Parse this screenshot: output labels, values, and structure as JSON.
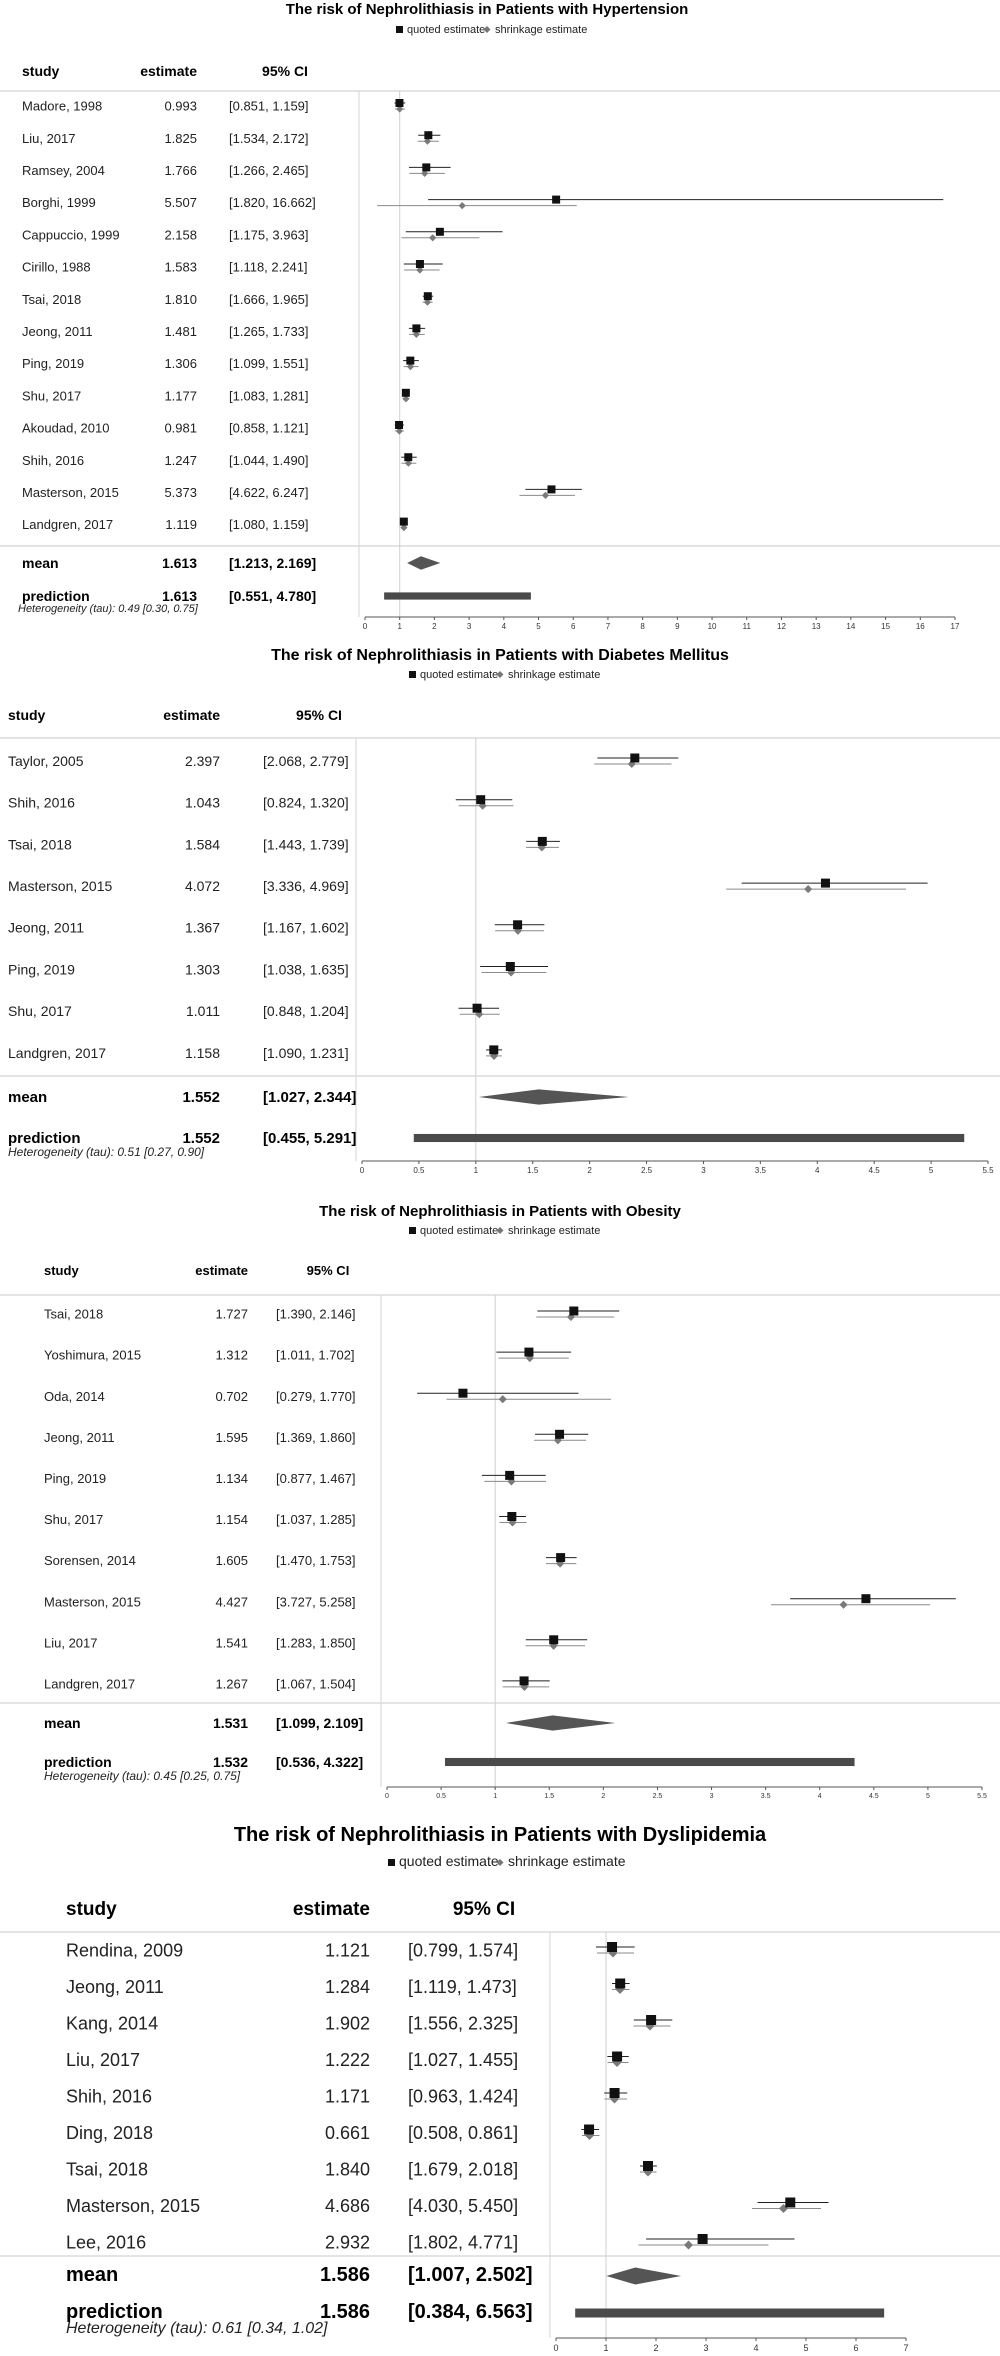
{
  "chart_data": [
    {
      "type": "forest",
      "title": "The risk of Nephrolithiasis in Patients with Hypertension",
      "legend": [
        "quoted estimate",
        "shrinkage estimate"
      ],
      "headers": [
        "study",
        "estimate",
        "95% CI"
      ],
      "rows": [
        {
          "study": "Madore, 1998",
          "estimate": "0.993",
          "ci": "[0.851, 1.159]",
          "est": 0.993,
          "lo": 0.851,
          "hi": 1.159,
          "shrink": 1.0,
          "slo": 0.86,
          "shi": 1.15
        },
        {
          "study": "Liu, 2017",
          "estimate": "1.825",
          "ci": "[1.534, 2.172]",
          "est": 1.825,
          "lo": 1.534,
          "hi": 2.172,
          "shrink": 1.8,
          "slo": 1.52,
          "shi": 2.13
        },
        {
          "study": "Ramsey, 2004",
          "estimate": "1.766",
          "ci": "[1.266, 2.465]",
          "est": 1.766,
          "lo": 1.266,
          "hi": 2.465,
          "shrink": 1.72,
          "slo": 1.28,
          "shi": 2.3
        },
        {
          "study": "Borghi, 1999",
          "estimate": "5.507",
          "ci": "[1.820, 16.662]",
          "est": 5.507,
          "lo": 1.82,
          "hi": 16.662,
          "shrink": 2.8,
          "slo": 0.35,
          "shi": 6.1
        },
        {
          "study": "Cappuccio, 1999",
          "estimate": "2.158",
          "ci": "[1.175, 3.963]",
          "est": 2.158,
          "lo": 1.175,
          "hi": 3.963,
          "shrink": 1.95,
          "slo": 1.05,
          "shi": 3.3
        },
        {
          "study": "Cirillo, 1988",
          "estimate": "1.583",
          "ci": "[1.118, 2.241]",
          "est": 1.583,
          "lo": 1.118,
          "hi": 2.241,
          "shrink": 1.58,
          "slo": 1.13,
          "shi": 2.15
        },
        {
          "study": "Tsai, 2018",
          "estimate": "1.810",
          "ci": "[1.666, 1.965]",
          "est": 1.81,
          "lo": 1.666,
          "hi": 1.965,
          "shrink": 1.8,
          "slo": 1.66,
          "shi": 1.95
        },
        {
          "study": "Jeong, 2011",
          "estimate": "1.481",
          "ci": "[1.265, 1.733]",
          "est": 1.481,
          "lo": 1.265,
          "hi": 1.733,
          "shrink": 1.48,
          "slo": 1.27,
          "shi": 1.72
        },
        {
          "study": "Ping, 2019",
          "estimate": "1.306",
          "ci": "[1.099, 1.551]",
          "est": 1.306,
          "lo": 1.099,
          "hi": 1.551,
          "shrink": 1.31,
          "slo": 1.11,
          "shi": 1.54
        },
        {
          "study": "Shu, 2017",
          "estimate": "1.177",
          "ci": "[1.083, 1.281]",
          "est": 1.177,
          "lo": 1.083,
          "hi": 1.281,
          "shrink": 1.18,
          "slo": 1.09,
          "shi": 1.28
        },
        {
          "study": "Akoudad, 2010",
          "estimate": "0.981",
          "ci": "[0.858, 1.121]",
          "est": 0.981,
          "lo": 0.858,
          "hi": 1.121,
          "shrink": 0.99,
          "slo": 0.87,
          "shi": 1.12
        },
        {
          "study": "Shih, 2016",
          "estimate": "1.247",
          "ci": "[1.044, 1.490]",
          "est": 1.247,
          "lo": 1.044,
          "hi": 1.49,
          "shrink": 1.25,
          "slo": 1.05,
          "shi": 1.48
        },
        {
          "study": "Masterson, 2015",
          "estimate": "5.373",
          "ci": "[4.622, 6.247]",
          "est": 5.373,
          "lo": 4.622,
          "hi": 6.247,
          "shrink": 5.2,
          "slo": 4.45,
          "shi": 6.05
        },
        {
          "study": "Landgren, 2017",
          "estimate": "1.119",
          "ci": "[1.080, 1.159]",
          "est": 1.119,
          "lo": 1.08,
          "hi": 1.159,
          "shrink": 1.12,
          "slo": 1.08,
          "shi": 1.16
        }
      ],
      "mean": {
        "label": "mean",
        "estimate": "1.613",
        "ci": "[1.213, 2.169]",
        "est": 1.613,
        "lo": 1.213,
        "hi": 2.169
      },
      "prediction": {
        "label": "prediction",
        "estimate": "1.613",
        "ci": "[0.551, 4.780]",
        "lo": 0.551,
        "hi": 4.78
      },
      "heterogeneity": "Heterogeneity (tau): 0.49 [0.30, 0.75]",
      "xlim": [
        0,
        17
      ],
      "xticks": [
        "0",
        "1",
        "2",
        "3",
        "4",
        "5",
        "6",
        "7",
        "8",
        "9",
        "10",
        "11",
        "12",
        "13",
        "14",
        "15",
        "16",
        "17"
      ]
    },
    {
      "type": "forest",
      "title": "The risk of Nephrolithiasis in Patients with Diabetes Mellitus",
      "legend": [
        "quoted estimate",
        "shrinkage estimate"
      ],
      "headers": [
        "study",
        "estimate",
        "95% CI"
      ],
      "rows": [
        {
          "study": "Taylor, 2005",
          "estimate": "2.397",
          "ci": "[2.068, 2.779]",
          "est": 2.397,
          "lo": 2.068,
          "hi": 2.779,
          "shrink": 2.37,
          "slo": 2.04,
          "shi": 2.72
        },
        {
          "study": "Shih, 2016",
          "estimate": "1.043",
          "ci": "[0.824, 1.320]",
          "est": 1.043,
          "lo": 0.824,
          "hi": 1.32,
          "shrink": 1.06,
          "slo": 0.85,
          "shi": 1.33
        },
        {
          "study": "Tsai, 2018",
          "estimate": "1.584",
          "ci": "[1.443, 1.739]",
          "est": 1.584,
          "lo": 1.443,
          "hi": 1.739,
          "shrink": 1.58,
          "slo": 1.44,
          "shi": 1.73
        },
        {
          "study": "Masterson, 2015",
          "estimate": "4.072",
          "ci": "[3.336, 4.969]",
          "est": 4.072,
          "lo": 3.336,
          "hi": 4.969,
          "shrink": 3.92,
          "slo": 3.2,
          "shi": 4.78
        },
        {
          "study": "Jeong, 2011",
          "estimate": "1.367",
          "ci": "[1.167, 1.602]",
          "est": 1.367,
          "lo": 1.167,
          "hi": 1.602,
          "shrink": 1.37,
          "slo": 1.17,
          "shi": 1.6
        },
        {
          "study": "Ping, 2019",
          "estimate": "1.303",
          "ci": "[1.038, 1.635]",
          "est": 1.303,
          "lo": 1.038,
          "hi": 1.635,
          "shrink": 1.31,
          "slo": 1.05,
          "shi": 1.62
        },
        {
          "study": "Shu, 2017",
          "estimate": "1.011",
          "ci": "[0.848, 1.204]",
          "est": 1.011,
          "lo": 0.848,
          "hi": 1.204,
          "shrink": 1.03,
          "slo": 0.86,
          "shi": 1.21
        },
        {
          "study": "Landgren, 2017",
          "estimate": "1.158",
          "ci": "[1.090, 1.231]",
          "est": 1.158,
          "lo": 1.09,
          "hi": 1.231,
          "shrink": 1.16,
          "slo": 1.09,
          "shi": 1.23
        }
      ],
      "mean": {
        "label": "mean",
        "estimate": "1.552",
        "ci": "[1.027, 2.344]",
        "est": 1.552,
        "lo": 1.027,
        "hi": 2.344
      },
      "prediction": {
        "label": "prediction",
        "estimate": "1.552",
        "ci": "[0.455, 5.291]",
        "lo": 0.455,
        "hi": 5.291
      },
      "heterogeneity": "Heterogeneity (tau): 0.51 [0.27, 0.90]",
      "xlim": [
        0,
        5.5
      ],
      "xticks": [
        "0",
        "0.5",
        "1",
        "1.5",
        "2",
        "2.5",
        "3",
        "3.5",
        "4",
        "4.5",
        "5",
        "5.5"
      ]
    },
    {
      "type": "forest",
      "title": "The risk of Nephrolithiasis in Patients with Obesity",
      "legend": [
        "quoted estimate",
        "shrinkage estimate"
      ],
      "headers": [
        "study",
        "estimate",
        "95% CI"
      ],
      "rows": [
        {
          "study": "Tsai, 2018",
          "estimate": "1.727",
          "ci": "[1.390, 2.146]",
          "est": 1.727,
          "lo": 1.39,
          "hi": 2.146,
          "shrink": 1.7,
          "slo": 1.38,
          "shi": 2.1
        },
        {
          "study": "Yoshimura, 2015",
          "estimate": "1.312",
          "ci": "[1.011, 1.702]",
          "est": 1.312,
          "lo": 1.011,
          "hi": 1.702,
          "shrink": 1.32,
          "slo": 1.03,
          "shi": 1.68
        },
        {
          "study": "Oda, 2014",
          "estimate": "0.702",
          "ci": "[0.279, 1.770]",
          "est": 0.702,
          "lo": 0.279,
          "hi": 1.77,
          "shrink": 1.07,
          "slo": 0.55,
          "shi": 2.07
        },
        {
          "study": "Jeong, 2011",
          "estimate": "1.595",
          "ci": "[1.369, 1.860]",
          "est": 1.595,
          "lo": 1.369,
          "hi": 1.86,
          "shrink": 1.58,
          "slo": 1.36,
          "shi": 1.84
        },
        {
          "study": "Ping, 2019",
          "estimate": "1.134",
          "ci": "[0.877, 1.467]",
          "est": 1.134,
          "lo": 0.877,
          "hi": 1.467,
          "shrink": 1.15,
          "slo": 0.9,
          "shi": 1.47
        },
        {
          "study": "Shu, 2017",
          "estimate": "1.154",
          "ci": "[1.037, 1.285]",
          "est": 1.154,
          "lo": 1.037,
          "hi": 1.285,
          "shrink": 1.16,
          "slo": 1.04,
          "shi": 1.29
        },
        {
          "study": "Sorensen, 2014",
          "estimate": "1.605",
          "ci": "[1.470, 1.753]",
          "est": 1.605,
          "lo": 1.47,
          "hi": 1.753,
          "shrink": 1.6,
          "slo": 1.47,
          "shi": 1.75
        },
        {
          "study": "Masterson, 2015",
          "estimate": "4.427",
          "ci": "[3.727, 5.258]",
          "est": 4.427,
          "lo": 3.727,
          "hi": 5.258,
          "shrink": 4.22,
          "slo": 3.55,
          "shi": 5.02
        },
        {
          "study": "Liu, 2017",
          "estimate": "1.541",
          "ci": "[1.283, 1.850]",
          "est": 1.541,
          "lo": 1.283,
          "hi": 1.85,
          "shrink": 1.54,
          "slo": 1.28,
          "shi": 1.83
        },
        {
          "study": "Landgren, 2017",
          "estimate": "1.267",
          "ci": "[1.067, 1.504]",
          "est": 1.267,
          "lo": 1.067,
          "hi": 1.504,
          "shrink": 1.27,
          "slo": 1.07,
          "shi": 1.5
        }
      ],
      "mean": {
        "label": "mean",
        "estimate": "1.531",
        "ci": "[1.099, 2.109]",
        "est": 1.531,
        "lo": 1.099,
        "hi": 2.109
      },
      "prediction": {
        "label": "prediction",
        "estimate": "1.532",
        "ci": "[0.536, 4.322]",
        "lo": 0.536,
        "hi": 4.322
      },
      "heterogeneity": "Heterogeneity (tau): 0.45 [0.25, 0.75]",
      "xlim": [
        0,
        5.5
      ],
      "xticks": [
        "0",
        "0.5",
        "1",
        "1.5",
        "2",
        "2.5",
        "3",
        "3.5",
        "4",
        "4.5",
        "5",
        "5.5"
      ]
    },
    {
      "type": "forest",
      "title": "The risk of Nephrolithiasis in Patients with Dyslipidemia",
      "legend": [
        "quoted estimate",
        "shrinkage estimate"
      ],
      "headers": [
        "study",
        "estimate",
        "95% CI"
      ],
      "rows": [
        {
          "study": "Rendina, 2009",
          "estimate": "1.121",
          "ci": "[0.799, 1.574]",
          "est": 1.121,
          "lo": 0.799,
          "hi": 1.574,
          "shrink": 1.14,
          "slo": 0.82,
          "shi": 1.56
        },
        {
          "study": "Jeong, 2011",
          "estimate": "1.284",
          "ci": "[1.119, 1.473]",
          "est": 1.284,
          "lo": 1.119,
          "hi": 1.473,
          "shrink": 1.28,
          "slo": 1.12,
          "shi": 1.47
        },
        {
          "study": "Kang, 2014",
          "estimate": "1.902",
          "ci": "[1.556, 2.325]",
          "est": 1.902,
          "lo": 1.556,
          "hi": 2.325,
          "shrink": 1.88,
          "slo": 1.55,
          "shi": 2.29
        },
        {
          "study": "Liu, 2017",
          "estimate": "1.222",
          "ci": "[1.027, 1.455]",
          "est": 1.222,
          "lo": 1.027,
          "hi": 1.455,
          "shrink": 1.22,
          "slo": 1.03,
          "shi": 1.45
        },
        {
          "study": "Shih, 2016",
          "estimate": "1.171",
          "ci": "[0.963, 1.424]",
          "est": 1.171,
          "lo": 0.963,
          "hi": 1.424,
          "shrink": 1.17,
          "slo": 0.97,
          "shi": 1.42
        },
        {
          "study": "Ding, 2018",
          "estimate": "0.661",
          "ci": "[0.508, 0.861]",
          "est": 0.661,
          "lo": 0.508,
          "hi": 0.861,
          "shrink": 0.67,
          "slo": 0.52,
          "shi": 0.87
        },
        {
          "study": "Tsai, 2018",
          "estimate": "1.840",
          "ci": "[1.679, 2.018]",
          "est": 1.84,
          "lo": 1.679,
          "hi": 2.018,
          "shrink": 1.84,
          "slo": 1.68,
          "shi": 2.01
        },
        {
          "study": "Masterson, 2015",
          "estimate": "4.686",
          "ci": "[4.030, 5.450]",
          "est": 4.686,
          "lo": 4.03,
          "hi": 5.45,
          "shrink": 4.55,
          "slo": 3.92,
          "shi": 5.3
        },
        {
          "study": "Lee, 2016",
          "estimate": "2.932",
          "ci": "[1.802, 4.771]",
          "est": 2.932,
          "lo": 1.802,
          "hi": 4.771,
          "shrink": 2.65,
          "slo": 1.65,
          "shi": 4.25
        }
      ],
      "mean": {
        "label": "mean",
        "estimate": "1.586",
        "ci": "[1.007, 2.502]",
        "est": 1.586,
        "lo": 1.007,
        "hi": 2.502
      },
      "prediction": {
        "label": "prediction",
        "estimate": "1.586",
        "ci": "[0.384, 6.563]",
        "lo": 0.384,
        "hi": 6.563
      },
      "heterogeneity": "Heterogeneity (tau): 0.61 [0.34, 1.02]",
      "xlim": [
        0,
        7
      ],
      "xticks": [
        "0",
        "1",
        "2",
        "3",
        "4",
        "5",
        "6",
        "7"
      ]
    }
  ]
}
